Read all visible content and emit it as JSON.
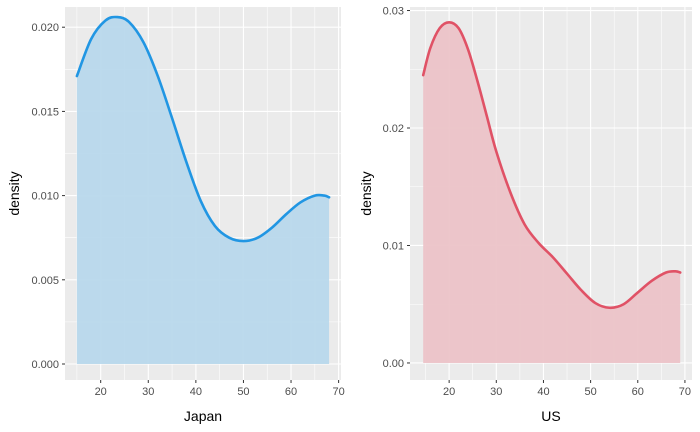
{
  "chart_data": [
    {
      "type": "area",
      "xlabel": "Japan",
      "ylabel": "density",
      "xlim": [
        12.5,
        70.5
      ],
      "ylim": [
        -0.00095,
        0.0212
      ],
      "x_ticks": [
        20,
        30,
        40,
        50,
        60,
        70
      ],
      "x_tick_labels": [
        "20",
        "30",
        "40",
        "50",
        "60",
        "70"
      ],
      "y_ticks": [
        0.0,
        0.005,
        0.01,
        0.015,
        0.02
      ],
      "y_tick_labels": [
        "0.000",
        "0.005",
        "0.010",
        "0.015",
        "0.020"
      ],
      "grid": true,
      "line_color": "#2196e3",
      "fill_color": "#b8d8ec",
      "panel_color": "#ebebeb",
      "series": [
        {
          "x": [
            15,
            18,
            21,
            23.5,
            26,
            29,
            32,
            35,
            38,
            41,
            44,
            47,
            50,
            53,
            56,
            59,
            62,
            65,
            67,
            68
          ],
          "y": [
            0.0171,
            0.0193,
            0.0204,
            0.0206,
            0.0203,
            0.0191,
            0.0171,
            0.0146,
            0.012,
            0.0097,
            0.0082,
            0.0075,
            0.0073,
            0.0075,
            0.0081,
            0.0089,
            0.0096,
            0.01,
            0.01,
            0.0099
          ]
        }
      ]
    },
    {
      "type": "area",
      "xlabel": "US",
      "ylabel": "density",
      "xlim": [
        11.7,
        71.5
      ],
      "ylim": [
        -0.00145,
        0.0303
      ],
      "x_ticks": [
        20,
        30,
        40,
        50,
        60,
        70
      ],
      "x_tick_labels": [
        "20",
        "30",
        "40",
        "50",
        "60",
        "70"
      ],
      "y_ticks": [
        0.0,
        0.01,
        0.02,
        0.03
      ],
      "y_tick_labels": [
        "0.00",
        "0.01",
        "0.02",
        "0.03"
      ],
      "grid": true,
      "line_color": "#e05266",
      "fill_color": "#ecc3c8",
      "panel_color": "#ebebeb",
      "series": [
        {
          "x": [
            14.5,
            16,
            18,
            20,
            22,
            24,
            26,
            28,
            30,
            33,
            36,
            39,
            42,
            45,
            48,
            51,
            54,
            57,
            60,
            63,
            66,
            68,
            69
          ],
          "y": [
            0.0245,
            0.0268,
            0.0285,
            0.029,
            0.0285,
            0.0267,
            0.024,
            0.021,
            0.018,
            0.0145,
            0.0118,
            0.0102,
            0.009,
            0.0076,
            0.0062,
            0.0051,
            0.0047,
            0.005,
            0.006,
            0.007,
            0.0077,
            0.0078,
            0.0077
          ]
        }
      ]
    }
  ]
}
